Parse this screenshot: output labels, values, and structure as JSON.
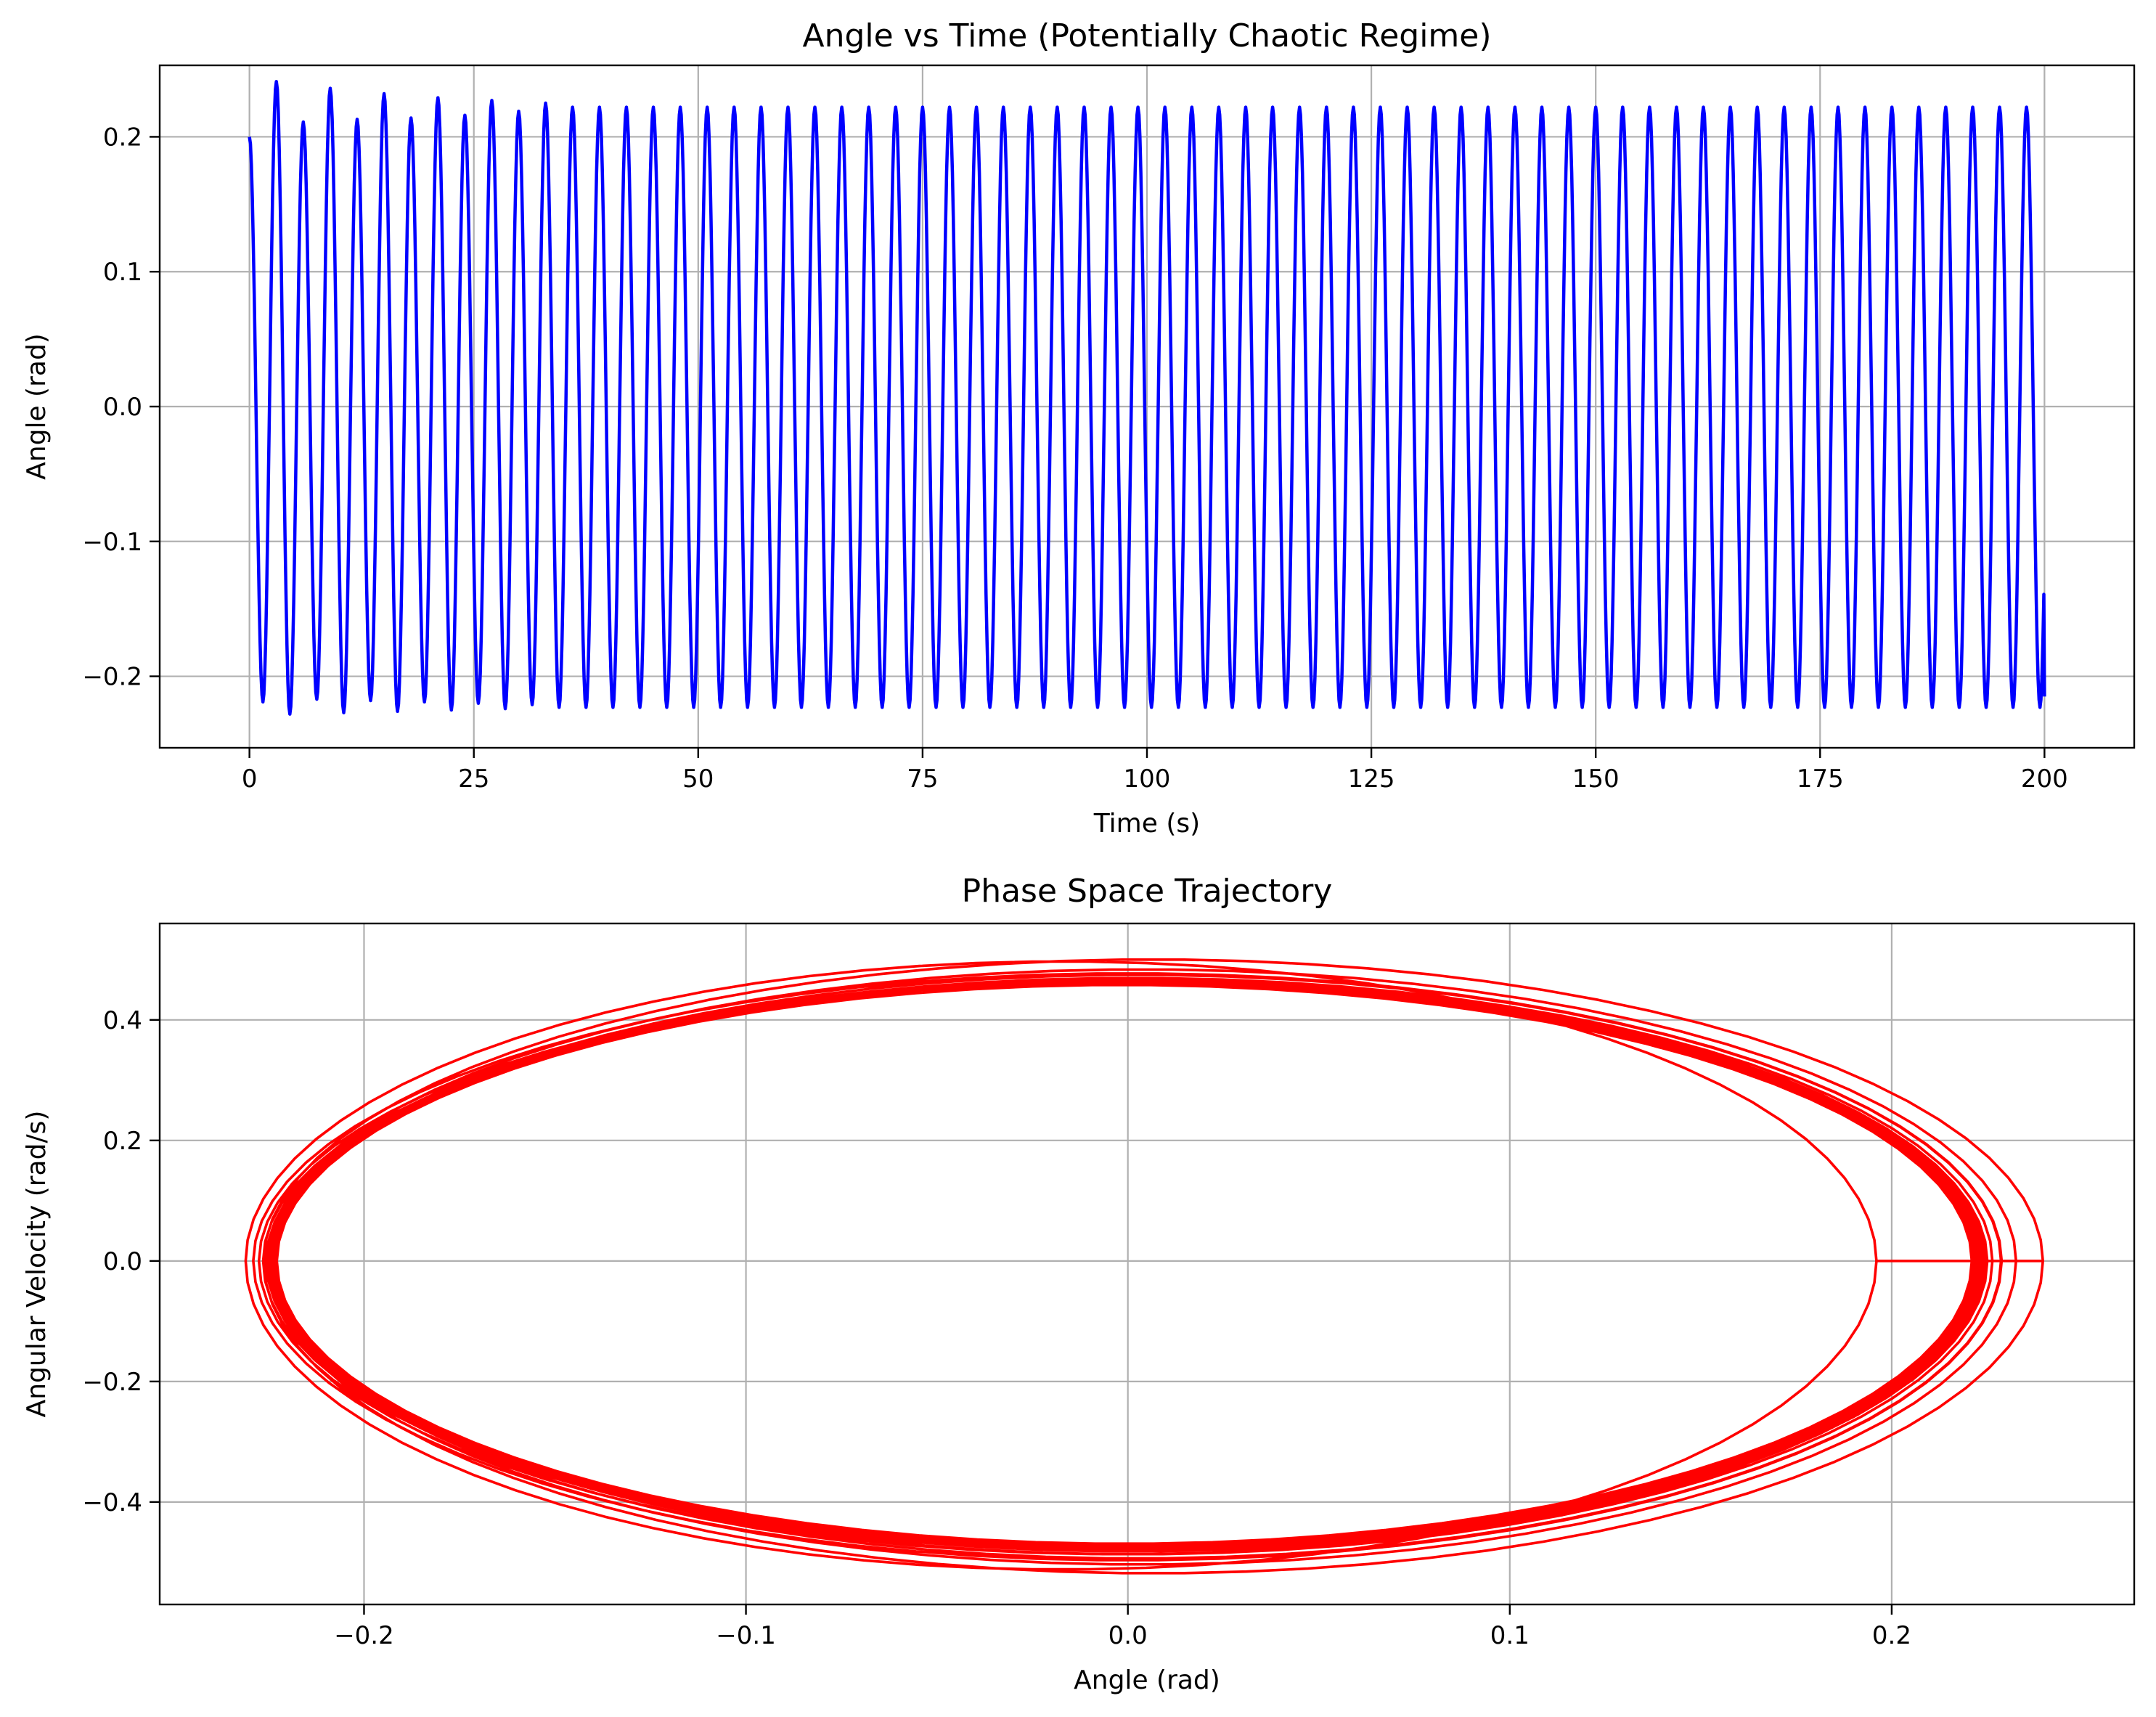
{
  "colors": {
    "angle_line": "#0000ff",
    "phase_line": "#ff0000",
    "grid": "#b0b0b0"
  },
  "chart_data": [
    {
      "type": "line",
      "title": "Angle vs Time (Potentially Chaotic Regime)",
      "xlabel": "Time (s)",
      "ylabel": "Angle (rad)",
      "xlim": [
        -10,
        210
      ],
      "ylim": [
        -0.253,
        0.253
      ],
      "grid": true,
      "xticks": [
        0,
        25,
        50,
        75,
        100,
        125,
        150,
        175,
        200
      ],
      "xtick_labels": [
        "0",
        "25",
        "50",
        "75",
        "100",
        "125",
        "150",
        "175",
        "200"
      ],
      "yticks": [
        -0.2,
        -0.1,
        0.0,
        0.1,
        0.2
      ],
      "ytick_labels": [
        "−0.2",
        "−0.1",
        "0.0",
        "0.1",
        "0.2"
      ],
      "series": [
        {
          "name": "angle",
          "color": "#0000ff",
          "t_range": [
            0,
            200
          ],
          "initial_value": 0.2,
          "period_s": 3.0,
          "early_peaks": [
            0.241,
            0.211,
            0.236,
            0.213,
            0.232,
            0.214,
            0.229,
            0.216,
            0.227,
            0.219,
            0.225
          ],
          "early_troughs": [
            -0.219,
            -0.228,
            -0.217,
            -0.227,
            -0.218,
            -0.226,
            -0.219,
            -0.225,
            -0.22,
            -0.224,
            -0.221
          ],
          "steady_peak": 0.222,
          "steady_trough": -0.223,
          "final_value": -0.215
        }
      ]
    },
    {
      "type": "line",
      "title": "Phase Space Trajectory",
      "xlabel": "Angle (rad)",
      "ylabel": "Angular Velocity (rad/s)",
      "xlim": [
        -0.2535,
        0.2635
      ],
      "ylim": [
        -0.57,
        0.56
      ],
      "grid": true,
      "xticks": [
        -0.2,
        -0.1,
        0.0,
        0.1,
        0.2
      ],
      "xtick_labels": [
        "−0.2",
        "−0.1",
        "0.0",
        "0.1",
        "0.2"
      ],
      "yticks": [
        -0.4,
        -0.2,
        0.0,
        0.2,
        0.4
      ],
      "ytick_labels": [
        "−0.4",
        "−0.2",
        "0.0",
        "0.2",
        "0.4"
      ],
      "series": [
        {
          "name": "trajectory",
          "color": "#ff0000",
          "start_point": [
            0.2,
            0.0
          ],
          "angle_extent": [
            -0.229,
            0.241
          ],
          "velocity_extent": [
            -0.52,
            0.505
          ],
          "steady_angle_extent": [
            -0.223,
            0.222
          ],
          "steady_velocity_extent": [
            -0.47,
            0.46
          ]
        }
      ]
    }
  ]
}
